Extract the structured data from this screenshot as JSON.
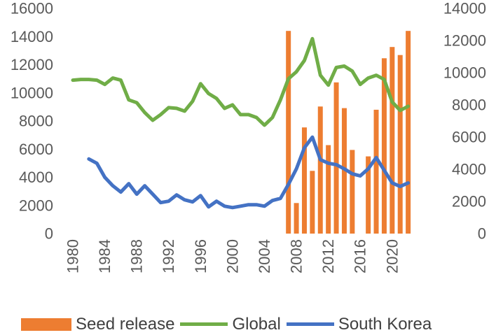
{
  "chart_data": {
    "type": "bar+line",
    "title": "",
    "xlabel": "",
    "ylabel_left": "",
    "ylabel_right": "",
    "xlim": [
      1980,
      2023
    ],
    "ylim_left": [
      0,
      16000
    ],
    "ylim_right": [
      0,
      14000
    ],
    "x_ticks": [
      1980,
      1984,
      1988,
      1992,
      1996,
      2000,
      2004,
      2008,
      2012,
      2016,
      2020
    ],
    "x_tick_labels": [
      "1980",
      "1984",
      "1988",
      "1992",
      "1996",
      "2000",
      "2004",
      "2008",
      "2012",
      "2016",
      "2020"
    ],
    "y_left_ticks": [
      0,
      2000,
      4000,
      6000,
      8000,
      10000,
      12000,
      14000,
      16000
    ],
    "y_left_tick_labels": [
      "0",
      "2000",
      "4000",
      "6000",
      "8000",
      "10000",
      "12000",
      "14000",
      "16000"
    ],
    "y_right_ticks": [
      0,
      2000,
      4000,
      6000,
      8000,
      10000,
      12000,
      14000
    ],
    "y_right_tick_labels": [
      "0",
      "2000",
      "4000",
      "6000",
      "8000",
      "10000",
      "12000",
      "14000"
    ],
    "grid": false,
    "legend_position": "bottom",
    "series": [
      {
        "name": "Seed release",
        "type": "bar",
        "axis": "right",
        "color": "#ED7D31",
        "x": [
          2007,
          2008,
          2009,
          2010,
          2011,
          2012,
          2013,
          2014,
          2015,
          2017,
          2018,
          2019,
          2020,
          2021,
          2022
        ],
        "values": [
          12600,
          1900,
          6600,
          3900,
          7900,
          5500,
          9400,
          7800,
          5200,
          4800,
          7700,
          10900,
          11600,
          11100,
          12600
        ]
      },
      {
        "name": "Global",
        "type": "line",
        "axis": "left",
        "color": "#70AD47",
        "x": [
          1980,
          1981,
          1982,
          1983,
          1984,
          1985,
          1986,
          1987,
          1988,
          1989,
          1990,
          1991,
          1992,
          1993,
          1994,
          1995,
          1996,
          1997,
          1998,
          1999,
          2000,
          2001,
          2002,
          2003,
          2004,
          2005,
          2006,
          2007,
          2008,
          2009,
          2010,
          2011,
          2012,
          2013,
          2014,
          2015,
          2016,
          2017,
          2018,
          2019,
          2020,
          2021,
          2022
        ],
        "values": [
          10900,
          10950,
          10950,
          10900,
          10600,
          11050,
          10900,
          9500,
          9300,
          8600,
          8050,
          8450,
          8950,
          8900,
          8700,
          9400,
          10650,
          9950,
          9600,
          8900,
          9150,
          8450,
          8450,
          8250,
          7700,
          8250,
          9500,
          11000,
          11500,
          12300,
          13850,
          11250,
          10550,
          11800,
          11900,
          11550,
          10600,
          11050,
          11250,
          10950,
          9350,
          8750,
          9050
        ]
      },
      {
        "name": "South Korea",
        "type": "line",
        "axis": "left",
        "color": "#4472C4",
        "x": [
          1982,
          1983,
          1984,
          1985,
          1986,
          1987,
          1988,
          1989,
          1990,
          1991,
          1992,
          1993,
          1994,
          1995,
          1996,
          1997,
          1998,
          1999,
          2000,
          2001,
          2002,
          2003,
          2004,
          2005,
          2006,
          2007,
          2008,
          2009,
          2010,
          2011,
          2012,
          2013,
          2014,
          2015,
          2016,
          2017,
          2018,
          2019,
          2020,
          2021,
          2022
        ],
        "values": [
          5300,
          5000,
          4000,
          3400,
          2950,
          3550,
          2800,
          3400,
          2800,
          2200,
          2300,
          2750,
          2400,
          2250,
          2700,
          1900,
          2300,
          1950,
          1850,
          1950,
          2050,
          2050,
          1950,
          2350,
          2500,
          3500,
          4600,
          6100,
          6850,
          5250,
          5000,
          4900,
          4600,
          4250,
          4100,
          4600,
          5400,
          4500,
          3600,
          3350,
          3600
        ]
      }
    ]
  }
}
